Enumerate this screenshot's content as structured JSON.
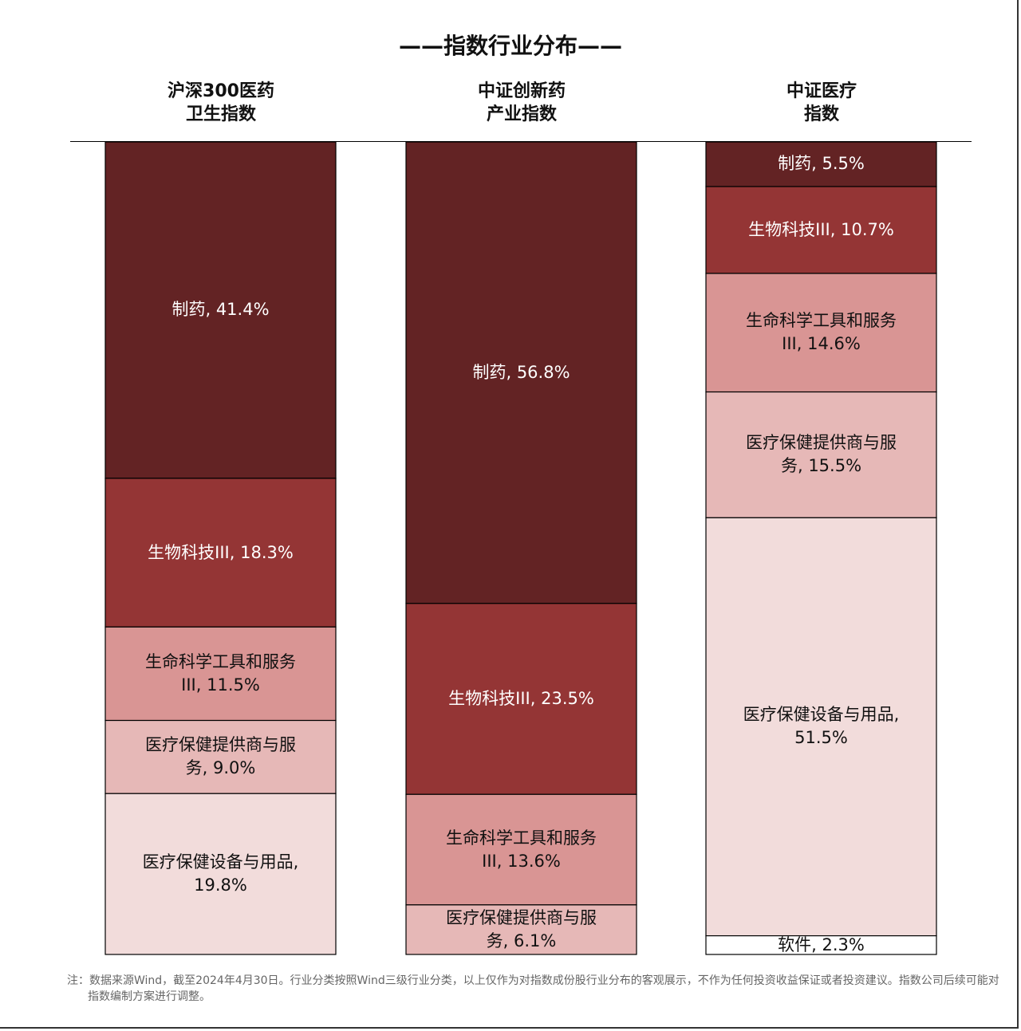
{
  "chart_data": {
    "type": "bar",
    "stacked": true,
    "normalized": true,
    "title": "——指数行业分布——",
    "categories": [
      "沪深300医药\n卫生指数",
      "中证创新药\n产业指数",
      "中证医疗\n指数"
    ],
    "series": [
      {
        "name": "制药",
        "color": "#632324",
        "text_color": "#ffffff",
        "values": [
          41.4,
          56.8,
          5.5
        ]
      },
      {
        "name": "生物科技III",
        "color": "#943535",
        "text_color": "#ffffff",
        "values": [
          18.3,
          23.5,
          10.7
        ]
      },
      {
        "name": "生命科学工具和服务III",
        "color": "#d99594",
        "text_color": "#111111",
        "values": [
          11.5,
          13.6,
          14.6
        ]
      },
      {
        "name": "医疗保健提供商与服务",
        "color": "#e6b8b7",
        "text_color": "#111111",
        "values": [
          9.0,
          6.1,
          15.5
        ]
      },
      {
        "name": "医疗保健设备与用品",
        "color": "#f2dcdb",
        "text_color": "#111111",
        "values": [
          19.8,
          null,
          51.5
        ]
      },
      {
        "name": "软件",
        "color": "#ffffff",
        "text_color": "#111111",
        "values": [
          null,
          null,
          2.3
        ]
      }
    ],
    "legend": "none",
    "grid": false
  },
  "note": "注：数据来源Wind，截至2024年4月30日。行业分类按照Wind三级行业分类，以上仅作为对指数成份股行业分布的客观展示，不作为任何投资收益保证或者投资建议。指数公司后续可能对指数编制方案进行调整。"
}
